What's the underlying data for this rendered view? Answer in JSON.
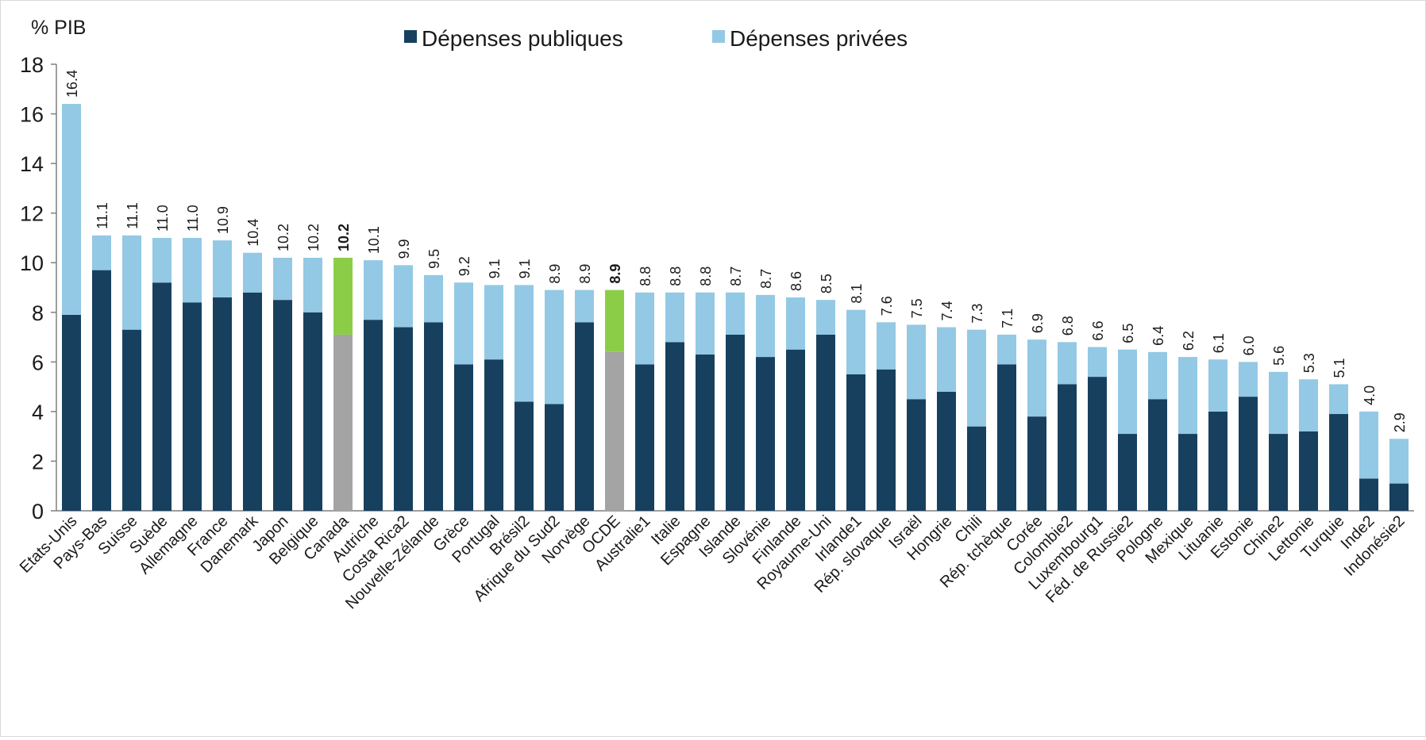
{
  "chart_data": {
    "type": "bar",
    "stacked": true,
    "y_unit_label": "% PIB",
    "ylim": [
      0,
      18
    ],
    "yticks": [
      0,
      2,
      4,
      6,
      8,
      10,
      12,
      14,
      16,
      18
    ],
    "grid": false,
    "legend_position": "top-center",
    "colors": {
      "public": "#17405e",
      "private": "#93c9e4",
      "highlight_public": "#a4a4a4",
      "highlight_private": "#8ccd47"
    },
    "series": [
      {
        "name": "Dépenses publiques",
        "values": [
          7.9,
          9.7,
          7.3,
          9.2,
          8.4,
          8.6,
          8.8,
          8.5,
          8.0,
          7.1,
          7.7,
          7.4,
          7.6,
          5.9,
          6.1,
          4.4,
          4.3,
          7.6,
          6.4,
          5.9,
          6.8,
          6.3,
          7.1,
          6.2,
          6.5,
          7.1,
          5.5,
          5.7,
          4.5,
          4.8,
          3.4,
          5.9,
          3.8,
          5.1,
          5.4,
          3.1,
          4.5,
          3.1,
          4.0,
          4.6,
          3.1,
          3.2,
          3.9,
          1.3,
          1.1
        ]
      },
      {
        "name": "Dépenses privées",
        "values": [
          8.5,
          1.4,
          3.8,
          1.8,
          2.6,
          2.3,
          1.6,
          1.7,
          2.2,
          3.1,
          2.4,
          2.5,
          1.9,
          3.3,
          3.0,
          4.7,
          4.6,
          1.3,
          2.5,
          2.9,
          2.0,
          2.5,
          1.7,
          2.5,
          2.1,
          1.4,
          2.6,
          1.9,
          3.0,
          2.6,
          3.9,
          1.2,
          3.1,
          1.7,
          1.2,
          3.4,
          1.9,
          3.1,
          2.1,
          1.4,
          2.5,
          2.1,
          1.2,
          2.7,
          1.8
        ]
      }
    ],
    "categories": [
      "Etats-Unis",
      "Pays-Bas",
      "Suisse",
      "Suède",
      "Allemagne",
      "France",
      "Danemark",
      "Japon",
      "Belgique",
      "Canada",
      "Autriche",
      "Costa Rica2",
      "Nouvelle-Zélande",
      "Grèce",
      "Portugal",
      "Brésil2",
      "Afrique du Sud2",
      "Norvège",
      "OCDE",
      "Australie1",
      "Italie",
      "Espagne",
      "Islande",
      "Slovénie",
      "Finlande",
      "Royaume-Uni",
      "Irlande1",
      "Rép. slovaque",
      "Israël",
      "Hongrie",
      "Chili",
      "Rép. tchèque",
      "Corée",
      "Colombie2",
      "Luxembourg1",
      "Féd. de Russie2",
      "Pologne",
      "Mexique",
      "Lituanie",
      "Estonie",
      "Chine2",
      "Lettonie",
      "Turquie",
      "Inde2",
      "Indonésie2"
    ],
    "total_labels": [
      "16.4",
      "11.1",
      "11.1",
      "11.0",
      "11.0",
      "10.9",
      "10.4",
      "10.2",
      "10.2",
      "10.2",
      "10.1",
      "9.9",
      "9.5",
      "9.2",
      "9.1",
      "9.1",
      "8.9",
      "8.9",
      "8.9",
      "8.8",
      "8.8",
      "8.8",
      "8.7",
      "8.7",
      "8.6",
      "8.5",
      "8.1",
      "7.6",
      "7.5",
      "7.4",
      "7.3",
      "7.1",
      "6.9",
      "6.8",
      "6.6",
      "6.5",
      "6.4",
      "6.2",
      "6.1",
      "6.0",
      "5.6",
      "5.3",
      "5.1",
      "4.0",
      "2.9"
    ],
    "highlight_categories": [
      "Canada",
      "OCDE"
    ]
  }
}
